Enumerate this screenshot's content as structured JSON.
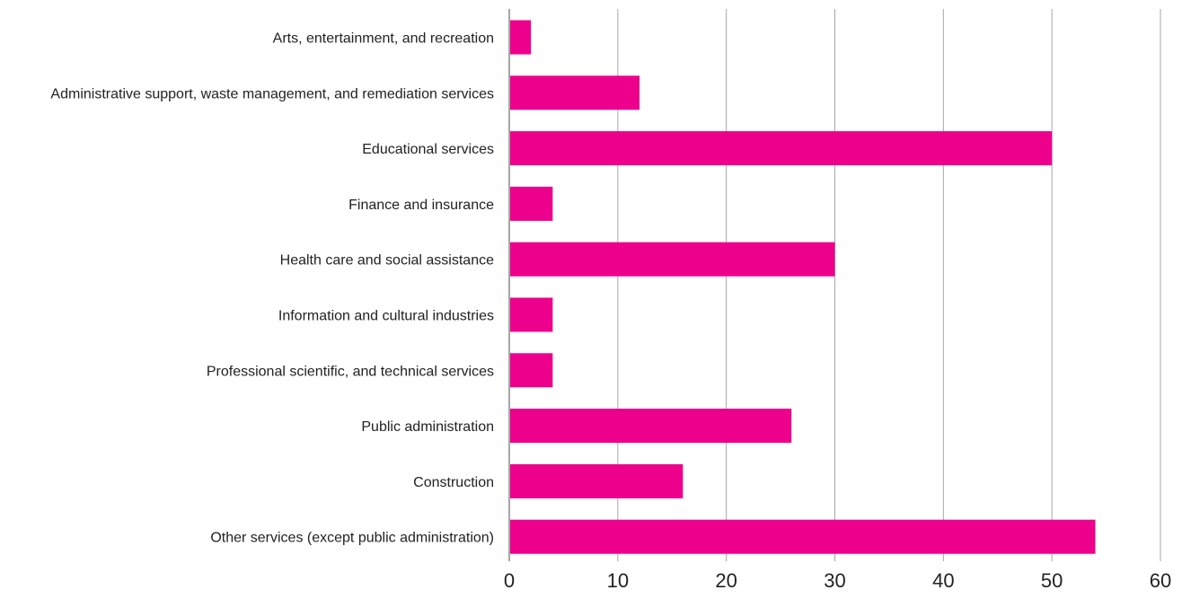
{
  "chart_data": {
    "type": "bar",
    "orientation": "horizontal",
    "categories": [
      "Arts, entertainment, and recreation",
      "Administrative support, waste management, and remediation services",
      "Educational services",
      "Finance and insurance",
      "Health care and social assistance",
      "Information and cultural industries",
      "Professional scientific, and technical services",
      "Public administration",
      "Construction",
      "Other services (except public administration)"
    ],
    "values": [
      2,
      12,
      50,
      4,
      30,
      4,
      4,
      26,
      16,
      54
    ],
    "xlim": [
      0,
      60
    ],
    "xticks": [
      0,
      10,
      20,
      30,
      40,
      50,
      60
    ],
    "grid": "vertical",
    "legend": "none",
    "title": "",
    "xlabel": "",
    "ylabel": ""
  },
  "colors": {
    "bar": "#ec008c",
    "grid": "#a6a6a6",
    "axis": "#a6a6a6",
    "text": "#222222"
  }
}
